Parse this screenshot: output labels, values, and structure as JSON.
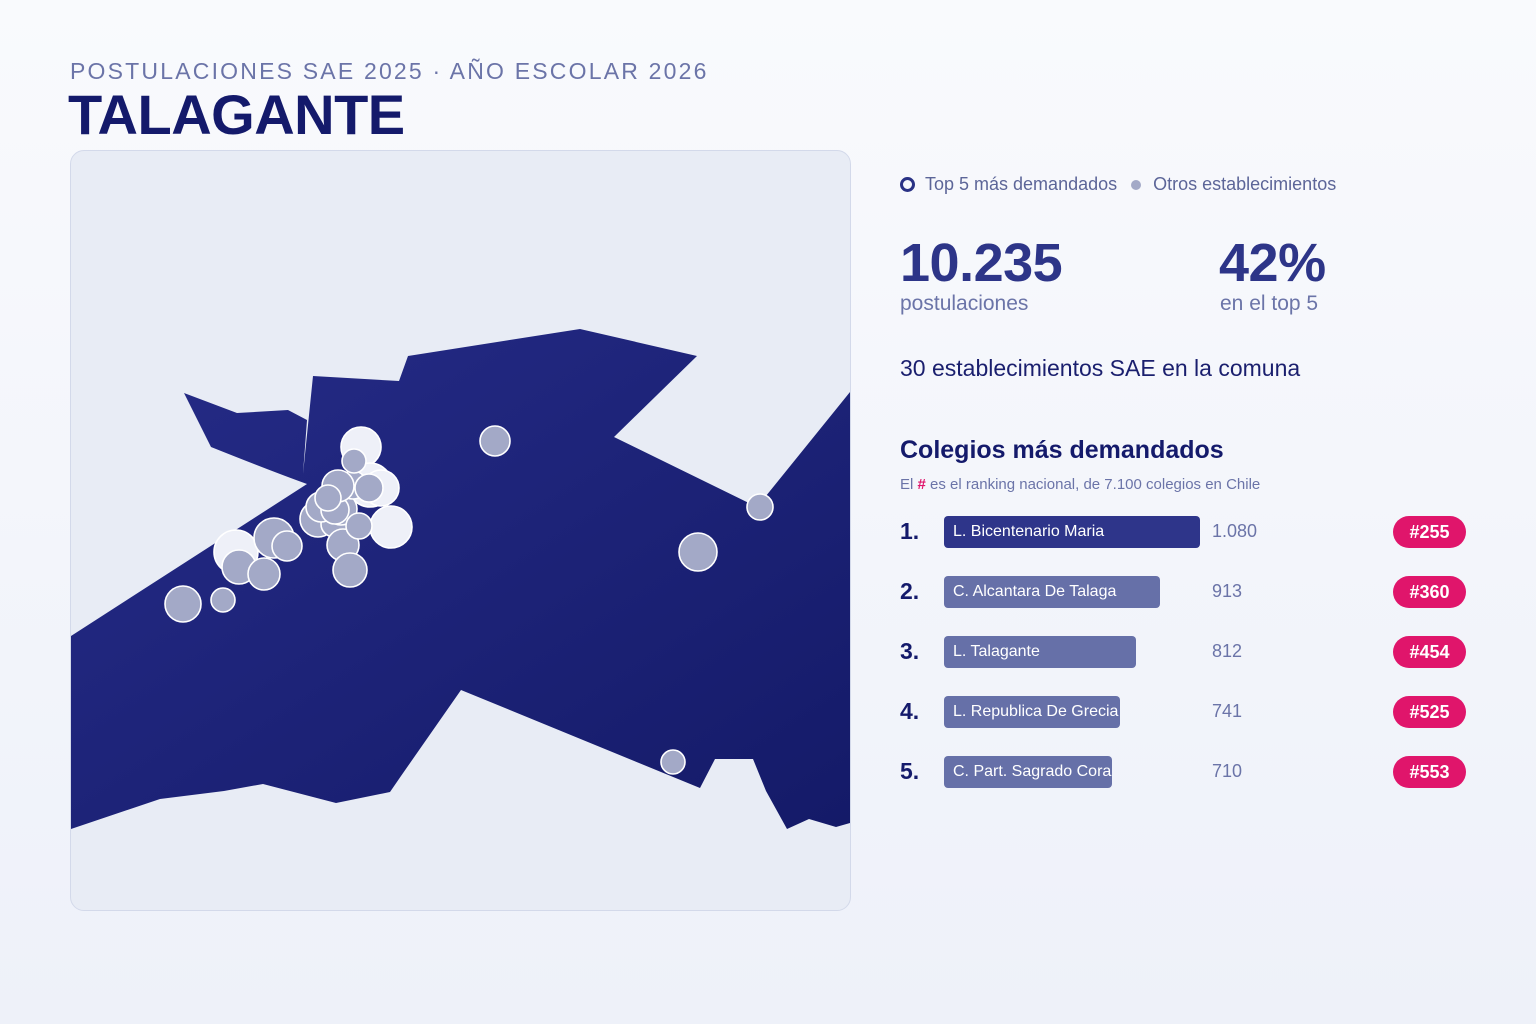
{
  "header": {
    "subtitle": "POSTULACIONES SAE 2025 · AÑO ESCOLAR 2026",
    "title": "TALAGANTE"
  },
  "legend": {
    "top5_label": "Top 5 más demandados",
    "others_label": "Otros establecimientos"
  },
  "stats": {
    "applications_value": "10.235",
    "applications_label": "postulaciones",
    "top5_share_value": "42%",
    "top5_share_label": "en el top 5",
    "schools_line": "30 establecimientos SAE en la comuna"
  },
  "ranking": {
    "title": "Colegios más demandados",
    "note_prefix": "El",
    "note_hash": "#",
    "note_suffix": "es el ranking nacional, de 7.100 colegios en Chile",
    "max_value": 1080,
    "items": [
      {
        "rank": "1.",
        "name": "L. Bicentenario Maria",
        "value": 1080,
        "value_label": "1.080",
        "national_rank": "#255"
      },
      {
        "rank": "2.",
        "name": "C. Alcantara De Talaga",
        "value": 913,
        "value_label": "913",
        "national_rank": "#360"
      },
      {
        "rank": "3.",
        "name": "L. Talagante",
        "value": 812,
        "value_label": "812",
        "national_rank": "#454"
      },
      {
        "rank": "4.",
        "name": "L. Republica De Grecia",
        "value": 741,
        "value_label": "741",
        "national_rank": "#525"
      },
      {
        "rank": "5.",
        "name": "C. Part. Sagrado Coraz",
        "value": 710,
        "value_label": "710",
        "national_rank": "#553"
      }
    ]
  },
  "colors": {
    "commune_fill_start": "#242a85",
    "commune_fill_end": "#141a68",
    "map_background": "#e8ecf5",
    "school_marker": "#a3a9c7",
    "top5_marker": "#eef0f8",
    "bar_first": "#2e358a",
    "bar_other": "#6670a8",
    "rank_badge": "#e0156b"
  }
}
